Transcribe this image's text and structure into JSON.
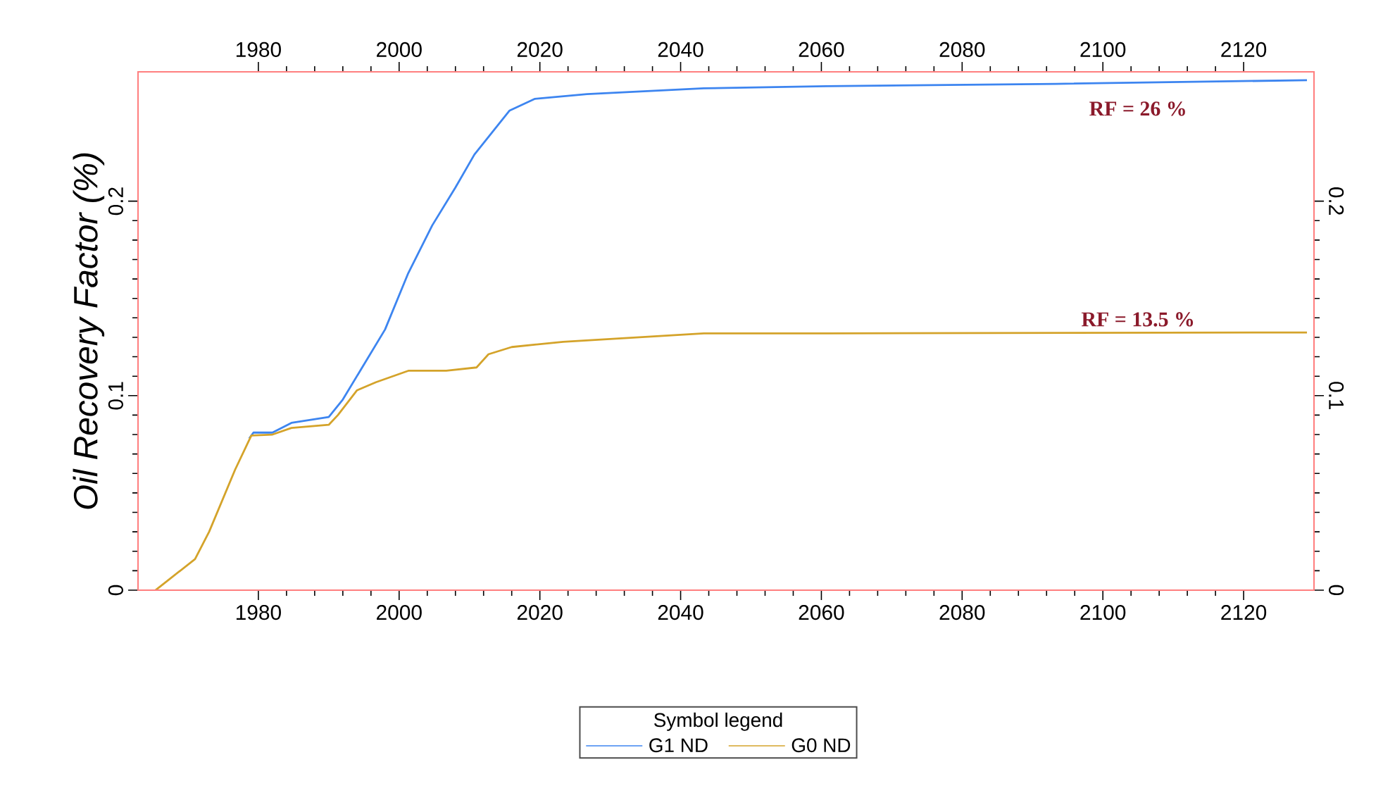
{
  "chart_data": {
    "type": "line",
    "ylabel": "Oil Recovery Factor (%)",
    "legend_title": "Symbol legend",
    "legend": "bottom",
    "annotations": [
      "RF = 26 %",
      "RF = 13.5 %"
    ],
    "xlim": [
      1962.9,
      2130
    ],
    "xticks": [
      1980,
      2000,
      2020,
      2040,
      2060,
      2080,
      2100,
      2120
    ],
    "x2lim": [
      1962.9,
      2130
    ],
    "x2ticks": [
      1980,
      2000,
      2020,
      2040,
      2060,
      2080,
      2100,
      2120
    ],
    "ylim": [
      0,
      0.2665
    ],
    "yticks": [
      0,
      0.1,
      0.2
    ],
    "y2lim": [
      0,
      0.2665
    ],
    "y2ticks": [
      0,
      0.1,
      0.2
    ],
    "series": [
      {
        "name": "G1  ND",
        "color": "#3d85f0",
        "x": [
          1978.7,
          1979.3,
          1982,
          1984.7,
          1990,
          1992,
          1998,
          2001.3,
          2004.7,
          2008,
          2010.7,
          2015.7,
          2019.3,
          2026.7,
          2043.3,
          2060.7,
          2093.3,
          2129
        ],
        "values": [
          0.078,
          0.081,
          0.081,
          0.086,
          0.089,
          0.098,
          0.134,
          0.163,
          0.1875,
          0.207,
          0.224,
          0.2466,
          0.2526,
          0.255,
          0.258,
          0.2591,
          0.2603,
          0.2622
        ]
      },
      {
        "name": "G0  ND",
        "color": "#d4a32a",
        "x": [
          1965.4,
          1971,
          1973,
          1976.7,
          1979,
          1982,
          1984.7,
          1990,
          1991.3,
          1994,
          1996.7,
          2001.3,
          2006.7,
          2011,
          2012.7,
          2016,
          2023.3,
          2043.3,
          2060.7,
          2129
        ],
        "values": [
          0,
          0.016,
          0.03,
          0.062,
          0.0795,
          0.08,
          0.0834,
          0.085,
          0.09,
          0.1027,
          0.1069,
          0.1128,
          0.1128,
          0.1145,
          0.1213,
          0.125,
          0.1277,
          0.132,
          0.132,
          0.1325
        ]
      }
    ]
  }
}
